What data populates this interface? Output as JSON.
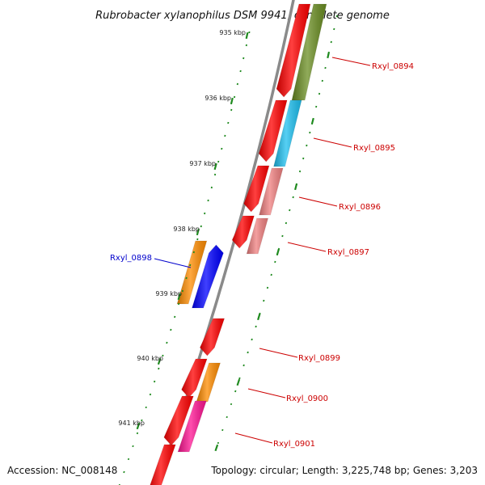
{
  "title": "Rubrobacter xylanophilus DSM 9941, complete genome",
  "footer": {
    "accession": "Accession: NC_008148",
    "summary": "Topology: circular; Length: 3,225,748 bp; Genes: 3,203"
  },
  "colors": {
    "backbone": "#8a8a8a",
    "ticks": "#1f8a1f",
    "label_red": "#cc0000",
    "label_blue": "#0000cc"
  },
  "kbp_labels": [
    "935 kbp",
    "936 kbp",
    "937 kbp",
    "938 kbp",
    "939 kbp",
    "940 kbp",
    "941 kbp"
  ],
  "gene_labels": [
    {
      "text": "Rxyl_0894",
      "color": "#cc0000"
    },
    {
      "text": "Rxyl_0895",
      "color": "#cc0000"
    },
    {
      "text": "Rxyl_0896",
      "color": "#cc0000"
    },
    {
      "text": "Rxyl_0897",
      "color": "#cc0000"
    },
    {
      "text": "Rxyl_0898",
      "color": "#0000cc"
    },
    {
      "text": "Rxyl_0899",
      "color": "#cc0000"
    },
    {
      "text": "Rxyl_0900",
      "color": "#cc0000"
    },
    {
      "text": "Rxyl_0901",
      "color": "#cc0000"
    }
  ],
  "features": [
    {
      "name": "gene-0894",
      "color": "#ff0000"
    },
    {
      "name": "cds-0894",
      "color": "#6b8e23"
    },
    {
      "name": "gene-0895",
      "color": "#ff0000"
    },
    {
      "name": "cds-0895",
      "color": "#1ec0f0"
    },
    {
      "name": "gene-0896",
      "color": "#ff0000"
    },
    {
      "name": "cds-0896",
      "color": "#f08080"
    },
    {
      "name": "gene-0897",
      "color": "#ff0000"
    },
    {
      "name": "cds-0897",
      "color": "#f08080"
    },
    {
      "name": "gene-0898",
      "color": "#0000ff"
    },
    {
      "name": "cds-0898",
      "color": "#ff8c00"
    },
    {
      "name": "gene-0899",
      "color": "#ff0000"
    },
    {
      "name": "gene-0900",
      "color": "#ff0000"
    },
    {
      "name": "cds-0900",
      "color": "#ff8c00"
    },
    {
      "name": "gene-0901",
      "color": "#ff0000"
    },
    {
      "name": "cds-0901",
      "color": "#ff1493"
    },
    {
      "name": "gene-0902",
      "color": "#ff0000"
    }
  ]
}
